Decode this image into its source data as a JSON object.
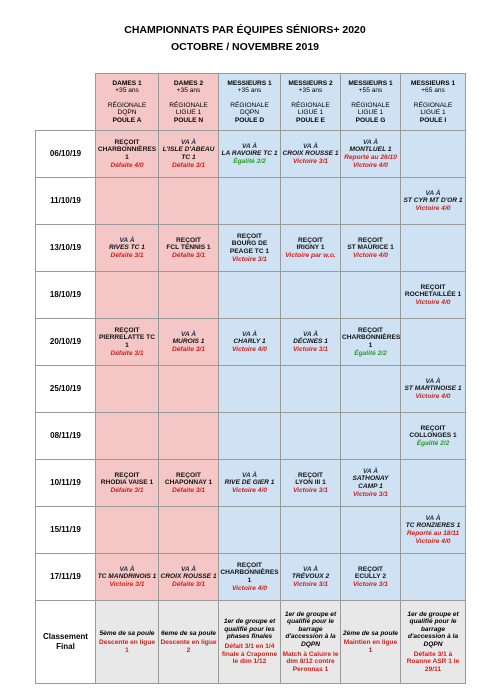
{
  "header": {
    "title": "CHAMPIONNATS PAR ÉQUIPES SÉNIORS+ 2020",
    "subtitle": "OCTOBRE / NOVEMBRE 2019"
  },
  "table": {
    "columns": [
      {
        "team": "DAMES 1",
        "category": "+35 ans",
        "level": "RÉGIONALE",
        "division": "DQPN",
        "poule": "POULE A"
      },
      {
        "team": "DAMES 2",
        "category": "+35 ans",
        "level": "RÉGIONALE",
        "division": "LIGUE 1",
        "poule": "POULE N"
      },
      {
        "team": "MESSIEURS 1",
        "category": "+35 ans",
        "level": "RÉGIONALE",
        "division": "DQPN",
        "poule": "POULE D"
      },
      {
        "team": "MESSIEURS 2",
        "category": "+35 ans",
        "level": "RÉGIONALE",
        "division": "LIGUE 1",
        "poule": "POULE E"
      },
      {
        "team": "MESSIEURS 1",
        "category": "+55 ans",
        "level": "RÉGIONALE",
        "division": "LIGUE 1",
        "poule": "POULE G"
      },
      {
        "team": "MESSIEURS 1",
        "category": "+65 ans",
        "level": "RÉGIONALE",
        "division": "LIGUE 1",
        "poule": "POULE I"
      }
    ],
    "rows": [
      {
        "date": "06/10/19",
        "cells": [
          {
            "home": "REÇOIT",
            "opponent": "CHARBONNIÈRES 1",
            "loss": "Défaite 4/0"
          },
          {
            "away": "VA À",
            "opponent": "L'ISLE D'ABEAU TC 1",
            "loss": "Défaite 3/1"
          },
          {
            "away": "VA À",
            "opponent": "LA RAVOIRE TC 1",
            "draw": "Égalité 2/2"
          },
          {
            "away": "VA À",
            "opponent": "CROIX ROUSSE 1",
            "win": "Victoire 3/1"
          },
          {
            "away": "VA À",
            "opponent": "MONTLUEL 1",
            "postponed": "Reporté au 26/10",
            "win": "Victoire 4/0"
          },
          null
        ]
      },
      {
        "date": "11/10/19",
        "cells": [
          null,
          null,
          null,
          null,
          null,
          {
            "away": "VA À",
            "opponent": "ST CYR MT D'OR 1",
            "win": "Victoire 4/0"
          }
        ]
      },
      {
        "date": "13/10/19",
        "cells": [
          {
            "away": "VA À",
            "opponent": "RIVES TC 1",
            "loss": "Défaite 3/1"
          },
          {
            "home": "REÇOIT",
            "opponent": "FCL TENNIS 1",
            "loss": "Défaite 3/1"
          },
          {
            "home": "REÇOIT",
            "opponent": "BOURG DE PEAGE TC 1",
            "win": "Victoire 3/1"
          },
          {
            "home": "REÇOIT",
            "opponent": "IRIGNY 1",
            "win": "Victoire par w.o."
          },
          {
            "home": "REÇOIT",
            "opponent": "ST MAURICE 1",
            "win": "Victoire 4/0"
          },
          null
        ]
      },
      {
        "date": "18/10/19",
        "cells": [
          null,
          null,
          null,
          null,
          null,
          {
            "home": "REÇOIT",
            "opponent": "ROCHETAILLÉE 1",
            "win": "Victoire 4/0"
          }
        ]
      },
      {
        "date": "20/10/19",
        "cells": [
          {
            "home": "REÇOIT",
            "opponent": "PIERRELATTE TC 1",
            "loss": "Défaite 3/1"
          },
          {
            "away": "VA À",
            "opponent": "MUROIS 1",
            "loss": "Défaite 3/1"
          },
          {
            "away": "VA À",
            "opponent": "CHARLY 1",
            "win": "Victoire 4/0"
          },
          {
            "away": "VA À",
            "opponent": "DÉCINES 1",
            "win": "Victoire 3/1"
          },
          {
            "home": "REÇOIT",
            "opponent": "CHARBONNIÈRES 1",
            "draw": "Égalité 2/2"
          },
          null
        ]
      },
      {
        "date": "25/10/19",
        "cells": [
          null,
          null,
          null,
          null,
          null,
          {
            "away": "VA À",
            "opponent": "ST MARTINOISE 1",
            "win": "Victoire 4/0"
          }
        ]
      },
      {
        "date": "08/11/19",
        "cells": [
          null,
          null,
          null,
          null,
          null,
          {
            "home": "REÇOIT",
            "opponent": "COLLONGES 1",
            "draw": "Égalité 2/2"
          }
        ]
      },
      {
        "date": "10/11/19",
        "cells": [
          {
            "home": "REÇOIT",
            "opponent": "RHODIA VAISE 1",
            "loss": "Défaite 3/1"
          },
          {
            "home": "REÇOIT",
            "opponent": "CHAPONNAY 1",
            "loss": "Défaite 3/1"
          },
          {
            "away": "VA À",
            "opponent": "RIVE DE GIER 1",
            "win": "Victoire 4/0"
          },
          {
            "home": "REÇOIT",
            "opponent": "LYON III 1",
            "win": "Victoire 3/1"
          },
          {
            "away": "VA À",
            "opponent": "SATHONAY CAMP 1",
            "win": "Victoire 3/1"
          },
          null
        ]
      },
      {
        "date": "15/11/19",
        "cells": [
          null,
          null,
          null,
          null,
          null,
          {
            "away": "VA À",
            "opponent": "TC RONZIERES 1",
            "postponed": "Reporté au 18/11",
            "win": "Victoire 4/0"
          }
        ]
      },
      {
        "date": "17/11/19",
        "cells": [
          {
            "away": "VA À",
            "opponent": "TC MANDRINOIS 1",
            "win": "Victoire 3/1"
          },
          {
            "away": "VA À",
            "opponent": "CROIX ROUSSE 1",
            "loss": "Défaite 3/1"
          },
          {
            "home": "REÇOIT",
            "opponent": "CHARBONNIÈRES 1",
            "win": "Victoire 4/0"
          },
          {
            "away": "VA À",
            "opponent": "TRÉVOUX 2",
            "win": "Victoire 3/1"
          },
          {
            "home": "REÇOIT",
            "opponent": "ECULLY 2",
            "win": "Victoire 3/1"
          },
          null
        ]
      }
    ],
    "final": {
      "label": "Classement Final",
      "cells": [
        {
          "rank": "5ème de sa poule",
          "outcome": "Descente en ligue 1"
        },
        {
          "rank": "6eme de sa poule",
          "outcome": "Descente en ligue 2"
        },
        {
          "rank": "1er de groupe et qualifié pour les phases finales",
          "outcome": "Défait 3/1 en 1/4 finale à Craponne le dim 1/12"
        },
        {
          "rank": "1er de groupe et qualifié pour le barrage d'accession à la DQPN",
          "outcome": "Match à Caluire le dim 8/12 contre Peronnas 1"
        },
        {
          "rank": "2ème de sa poule",
          "outcome": "Maintien en ligue 1"
        },
        {
          "rank": "1er de groupe et qualifié pour le barrage d'accession à la DQPN",
          "outcome": "Défaite 3/1 à Roanne ASR 1 le 29/11"
        }
      ]
    }
  }
}
